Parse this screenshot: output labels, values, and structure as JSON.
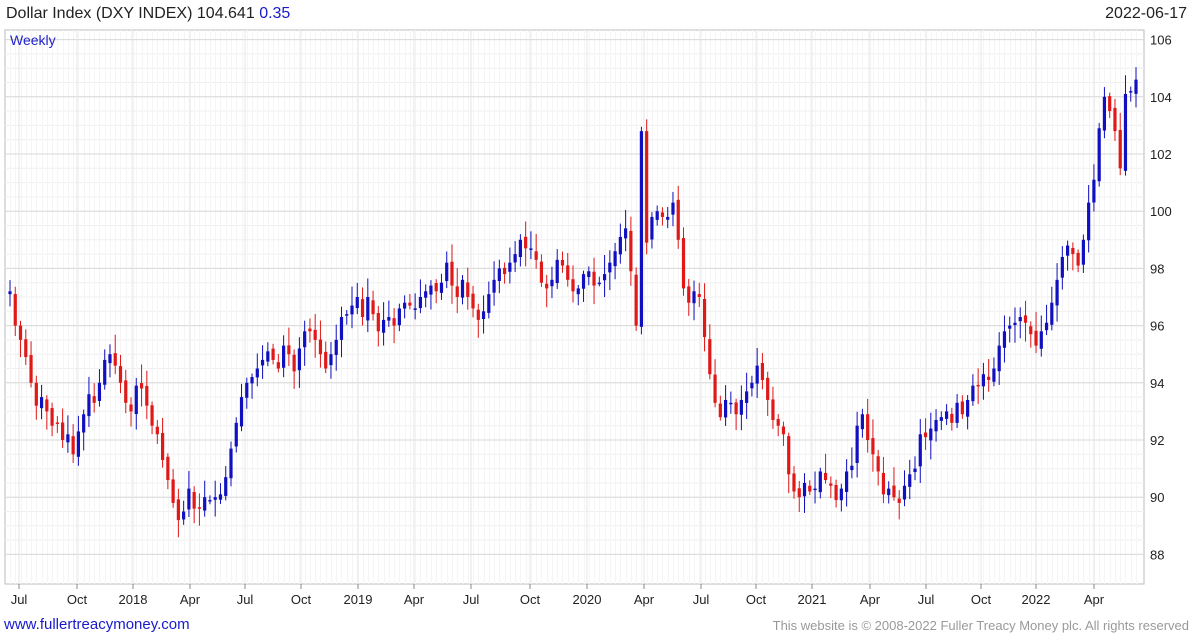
{
  "header": {
    "name": "Dollar Index (DXY INDEX)",
    "price": "104.641",
    "change": "0.35",
    "date": "2022-06-17"
  },
  "footer": {
    "url": "www.fullertreacymoney.com",
    "copyright": "This website is © 2008-2022 Fuller Treacy Money plc. All rights reserved"
  },
  "colors": {
    "up": "#1010c0",
    "down": "#e01818",
    "grid": "#d8d8d8"
  },
  "chart_data": {
    "type": "candlestick",
    "period_label": "Weekly",
    "ylim": [
      88,
      106
    ],
    "y_ticks": [
      88,
      90,
      92,
      94,
      96,
      98,
      100,
      102,
      104,
      106
    ],
    "x_ticks": [
      "Jul",
      "Oct",
      "2018",
      "Apr",
      "Jul",
      "Oct",
      "2019",
      "Apr",
      "Jul",
      "Oct",
      "2020",
      "Apr",
      "Jul",
      "Oct",
      "2021",
      "Apr",
      "Jul",
      "Oct",
      "2022",
      "Apr"
    ],
    "grid": true,
    "close_path": [
      97.2,
      96.0,
      95.5,
      94.9,
      94.0,
      93.2,
      93.5,
      93.0,
      92.5,
      92.6,
      92.0,
      92.2,
      91.5,
      92.3,
      92.9,
      93.6,
      93.3,
      94.0,
      94.8,
      95.0,
      94.6,
      94.0,
      93.3,
      93.0,
      93.9,
      93.8,
      93.2,
      92.5,
      92.2,
      91.3,
      90.6,
      89.8,
      89.2,
      89.5,
      90.3,
      89.6,
      89.6,
      90.0,
      89.9,
      90.0,
      90.1,
      90.7,
      91.7,
      92.6,
      93.5,
      94.0,
      94.2,
      94.5,
      94.8,
      95.1,
      94.8,
      94.5,
      95.3,
      95.0,
      94.4,
      95.2,
      95.8,
      95.8,
      95.5,
      95.0,
      94.5,
      95.0,
      95.5,
      96.3,
      96.4,
      96.7,
      97.0,
      96.3,
      97.0,
      96.4,
      95.8,
      96.2,
      96.3,
      96.0,
      96.6,
      96.8,
      96.7,
      96.6,
      97.0,
      97.2,
      97.4,
      97.2,
      97.5,
      98.2,
      97.4,
      97.0,
      97.6,
      97.0,
      96.6,
      96.2,
      96.5,
      97.1,
      97.6,
      98.0,
      97.8,
      98.2,
      98.5,
      99.0,
      98.7,
      98.7,
      98.3,
      97.5,
      97.3,
      97.6,
      98.3,
      98.1,
      97.6,
      97.2,
      97.3,
      97.8,
      97.9,
      97.4,
      97.5,
      97.8,
      98.2,
      98.6,
      99.1,
      99.4,
      97.9,
      96.0,
      102.8,
      98.9,
      99.8,
      100.0,
      99.8,
      99.8,
      100.3,
      99.0,
      97.3,
      96.8,
      97.2,
      97.0,
      95.6,
      94.3,
      93.3,
      92.8,
      93.4,
      93.3,
      92.9,
      93.4,
      93.7,
      94.0,
      94.6,
      94.1,
      93.4,
      92.7,
      92.5,
      92.2,
      90.8,
      90.2,
      90.0,
      90.5,
      90.2,
      90.3,
      90.9,
      90.6,
      90.4,
      89.9,
      90.3,
      90.9,
      91.1,
      92.5,
      92.9,
      92.0,
      91.5,
      90.9,
      90.1,
      90.3,
      90.0,
      89.8,
      90.4,
      90.8,
      91.0,
      92.2,
      92.1,
      92.4,
      92.7,
      92.8,
      93.0,
      92.6,
      93.3,
      92.9,
      93.4,
      93.9,
      93.9,
      94.3,
      94.1,
      94.5,
      95.3,
      95.8,
      96.0,
      96.1,
      96.3,
      96.1,
      95.7,
      95.3,
      95.8,
      96.1,
      96.8,
      97.6,
      98.4,
      98.8,
      98.5,
      98.1,
      99.0,
      100.3,
      101.1,
      102.9,
      104.0,
      103.5,
      102.8,
      101.5,
      104.1,
      104.2,
      104.6
    ]
  }
}
